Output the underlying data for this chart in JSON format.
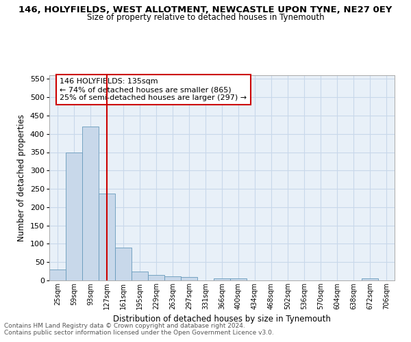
{
  "title": "146, HOLYFIELDS, WEST ALLOTMENT, NEWCASTLE UPON TYNE, NE27 0EY",
  "subtitle": "Size of property relative to detached houses in Tynemouth",
  "xlabel": "Distribution of detached houses by size in Tynemouth",
  "ylabel": "Number of detached properties",
  "footer_line1": "Contains HM Land Registry data © Crown copyright and database right 2024.",
  "footer_line2": "Contains public sector information licensed under the Open Government Licence v3.0.",
  "annotation_title": "146 HOLYFIELDS: 135sqm",
  "annotation_line1": "← 74% of detached houses are smaller (865)",
  "annotation_line2": "25% of semi-detached houses are larger (297) →",
  "bar_color": "#c8d8ea",
  "bar_edge_color": "#6699bb",
  "vline_color": "#cc0000",
  "annotation_box_edge": "#cc0000",
  "annotation_bg": "#ffffff",
  "grid_color": "#c8d8ea",
  "bg_color": "#e8f0f8",
  "categories": [
    "25sqm",
    "59sqm",
    "93sqm",
    "127sqm",
    "161sqm",
    "195sqm",
    "229sqm",
    "263sqm",
    "297sqm",
    "331sqm",
    "366sqm",
    "400sqm",
    "434sqm",
    "468sqm",
    "502sqm",
    "536sqm",
    "570sqm",
    "604sqm",
    "638sqm",
    "672sqm",
    "706sqm"
  ],
  "values": [
    30,
    350,
    420,
    237,
    90,
    25,
    15,
    12,
    10,
    0,
    5,
    5,
    0,
    0,
    0,
    0,
    0,
    0,
    0,
    5,
    0
  ],
  "ylim": [
    0,
    560
  ],
  "yticks": [
    0,
    50,
    100,
    150,
    200,
    250,
    300,
    350,
    400,
    450,
    500,
    550
  ],
  "vline_x_index": 3
}
